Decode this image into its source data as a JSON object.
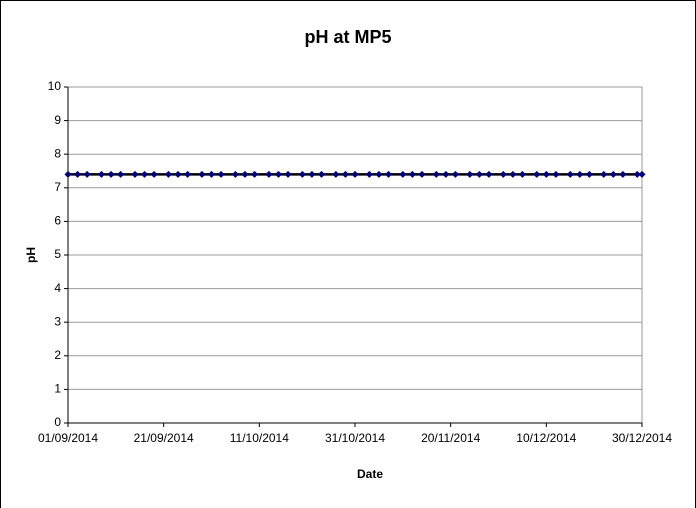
{
  "chart_data": {
    "type": "line",
    "title": "pH at MP5",
    "x_label": "Date",
    "y_label": "pH",
    "x": [
      "01/09/2014",
      "03/09/2014",
      "05/09/2014",
      "08/09/2014",
      "10/09/2014",
      "12/09/2014",
      "15/09/2014",
      "17/09/2014",
      "19/09/2014",
      "22/09/2014",
      "24/09/2014",
      "26/09/2014",
      "29/09/2014",
      "01/10/2014",
      "03/10/2014",
      "06/10/2014",
      "08/10/2014",
      "10/10/2014",
      "13/10/2014",
      "15/10/2014",
      "17/10/2014",
      "20/10/2014",
      "22/10/2014",
      "24/10/2014",
      "27/10/2014",
      "29/10/2014",
      "31/10/2014",
      "03/11/2014",
      "05/11/2014",
      "07/11/2014",
      "10/11/2014",
      "12/11/2014",
      "14/11/2014",
      "17/11/2014",
      "19/11/2014",
      "21/11/2014",
      "24/11/2014",
      "26/11/2014",
      "28/11/2014",
      "01/12/2014",
      "03/12/2014",
      "05/12/2014",
      "08/12/2014",
      "10/12/2014",
      "12/12/2014",
      "15/12/2014",
      "17/12/2014",
      "19/12/2014",
      "22/12/2014",
      "24/12/2014",
      "26/12/2014",
      "29/12/2014",
      "30/12/2014"
    ],
    "series": [
      {
        "name": "pH",
        "color": "#000080",
        "values": [
          7.4,
          7.4,
          7.4,
          7.4,
          7.4,
          7.4,
          7.4,
          7.4,
          7.4,
          7.4,
          7.4,
          7.4,
          7.4,
          7.4,
          7.4,
          7.4,
          7.4,
          7.4,
          7.4,
          7.4,
          7.4,
          7.4,
          7.4,
          7.4,
          7.4,
          7.4,
          7.4,
          7.4,
          7.4,
          7.4,
          7.4,
          7.4,
          7.4,
          7.4,
          7.4,
          7.4,
          7.4,
          7.4,
          7.4,
          7.4,
          7.4,
          7.4,
          7.4,
          7.4,
          7.4,
          7.4,
          7.4,
          7.4,
          7.4,
          7.4,
          7.4,
          7.4,
          7.4
        ]
      }
    ],
    "xlim": [
      "01/09/2014",
      "30/12/2014"
    ],
    "xticks": [
      "01/09/2014",
      "21/09/2014",
      "11/10/2014",
      "31/10/2014",
      "20/11/2014",
      "10/12/2014",
      "30/12/2014"
    ],
    "ylim": [
      0,
      10
    ],
    "yticks": [
      0,
      1,
      2,
      3,
      4,
      5,
      6,
      7,
      8,
      9,
      10
    ],
    "grid": true
  }
}
